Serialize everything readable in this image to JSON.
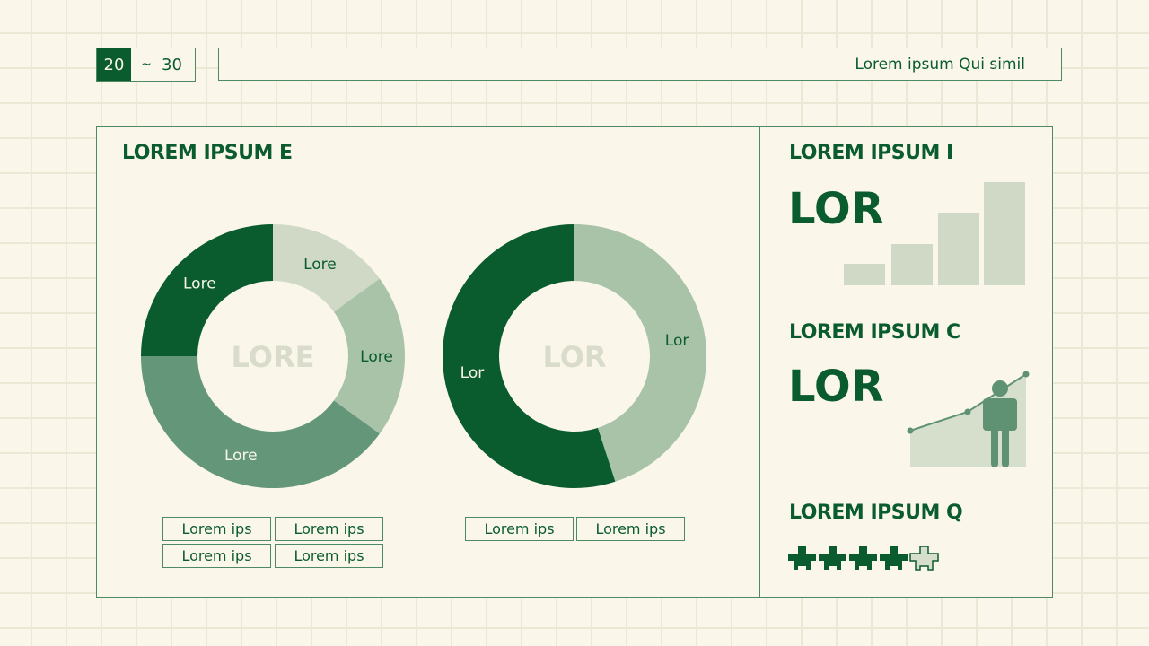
{
  "header": {
    "range_start": "20",
    "range_sep": "~",
    "range_end": "30",
    "title": "Lorem ipsum Qui simil"
  },
  "left_panel": {
    "title": "LOREM IPSUM E",
    "donut1": {
      "center": "LORE",
      "segments": [
        {
          "label": "Lore",
          "value": 15,
          "color": "#cfd9c6"
        },
        {
          "label": "Lore",
          "value": 20,
          "color": "#a8c3a8"
        },
        {
          "label": "Lore",
          "value": 40,
          "color": "#64977a"
        },
        {
          "label": "Lore",
          "value": 25,
          "color": "#0a5c2e"
        }
      ],
      "legend": [
        "Lorem ips",
        "Lorem ips",
        "Lorem ips",
        "Lorem ips"
      ]
    },
    "donut2": {
      "center": "LOR",
      "segments": [
        {
          "label": "Lor",
          "value": 45,
          "color": "#a8c3a8"
        },
        {
          "label": "Lor",
          "value": 55,
          "color": "#0a5c2e"
        }
      ],
      "legend": [
        "Lorem ips",
        "Lorem ips"
      ]
    }
  },
  "right_panel": {
    "card1": {
      "title": "LOREM IPSUM I",
      "value": "LOR",
      "bars_icon": "bar-chart-icon"
    },
    "card2": {
      "title": "LOREM IPSUM C",
      "value": "LOR",
      "icon": "person-growth-icon"
    },
    "card3": {
      "title": "LOREM IPSUM Q",
      "rating": 4,
      "max": 5
    }
  }
}
